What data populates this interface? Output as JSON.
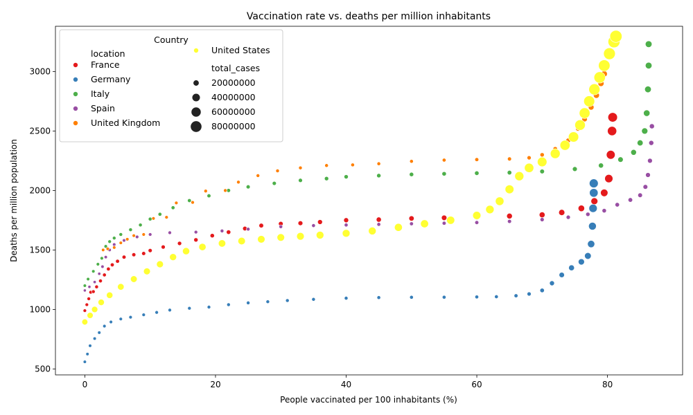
{
  "chart_data": {
    "type": "scatter",
    "title": "Vaccination rate vs. deaths per million inhabitants",
    "xlabel": "People vaccinated per 100 inhabitants (%)",
    "ylabel": "Deaths per million population",
    "xlim": [
      -4.5,
      91.5
    ],
    "ylim": [
      450,
      3380
    ],
    "x_ticks": [
      0,
      20,
      40,
      60,
      80
    ],
    "y_ticks": [
      500,
      1000,
      1500,
      2000,
      2500,
      3000
    ],
    "grid": false,
    "legend": {
      "placement": "top-left",
      "title": "Country",
      "hue_heading": "location",
      "size_heading": "total_cases",
      "size_entries": [
        20000000,
        40000000,
        60000000,
        80000000
      ]
    },
    "series": [
      {
        "name": "France",
        "color": "#e41a1c",
        "points": [
          [
            0,
            990
          ],
          [
            0.3,
            1040
          ],
          [
            0.6,
            1090
          ],
          [
            0.9,
            1145
          ],
          [
            1.3,
            1150
          ],
          [
            1.8,
            1190
          ],
          [
            2.4,
            1240
          ],
          [
            3.0,
            1290
          ],
          [
            3.6,
            1340
          ],
          [
            4.2,
            1375
          ],
          [
            5.0,
            1405
          ],
          [
            6.0,
            1440
          ],
          [
            7.5,
            1460
          ],
          [
            9.0,
            1470
          ],
          [
            10.0,
            1495
          ],
          [
            12.0,
            1525
          ],
          [
            14.5,
            1555
          ],
          [
            17.0,
            1585
          ],
          [
            19.5,
            1620
          ],
          [
            22.0,
            1650
          ],
          [
            24.5,
            1680
          ],
          [
            27.0,
            1705
          ],
          [
            30.0,
            1720
          ],
          [
            33.0,
            1725
          ],
          [
            36.0,
            1735
          ],
          [
            40.0,
            1750
          ],
          [
            45.0,
            1755
          ],
          [
            50.0,
            1765
          ],
          [
            55.0,
            1770
          ],
          [
            60.0,
            1775
          ],
          [
            65.0,
            1785
          ],
          [
            70.0,
            1795
          ],
          [
            73.0,
            1815
          ],
          [
            76.0,
            1850
          ],
          [
            78.0,
            1910
          ],
          [
            79.5,
            1980
          ],
          [
            80.2,
            2100
          ],
          [
            80.5,
            2300
          ],
          [
            80.7,
            2500
          ],
          [
            80.8,
            2615
          ]
        ],
        "cases": [
          5000000,
          5200000,
          5400000,
          5600000,
          5800000,
          6000000,
          6200000,
          6400000,
          6600000,
          6800000,
          7000000,
          7200000,
          7400000,
          7600000,
          7800000,
          8000000,
          8500000,
          9000000,
          9500000,
          10000000,
          10500000,
          11000000,
          11500000,
          12000000,
          12500000,
          13000000,
          14000000,
          15000000,
          16000000,
          17000000,
          18000000,
          19000000,
          21000000,
          24000000,
          28000000,
          33000000,
          40000000,
          47000000,
          52000000,
          55000000
        ]
      },
      {
        "name": "Germany",
        "color": "#377eb8",
        "points": [
          [
            0,
            560
          ],
          [
            0.4,
            625
          ],
          [
            0.8,
            695
          ],
          [
            1.5,
            755
          ],
          [
            2.2,
            805
          ],
          [
            3.0,
            860
          ],
          [
            4.0,
            895
          ],
          [
            5.5,
            920
          ],
          [
            7.0,
            935
          ],
          [
            9.0,
            955
          ],
          [
            11.0,
            975
          ],
          [
            13.0,
            995
          ],
          [
            16.0,
            1010
          ],
          [
            19.0,
            1020
          ],
          [
            22.0,
            1040
          ],
          [
            25.0,
            1055
          ],
          [
            28.0,
            1065
          ],
          [
            31.0,
            1075
          ],
          [
            35.0,
            1085
          ],
          [
            40.0,
            1095
          ],
          [
            45.0,
            1100
          ],
          [
            50.0,
            1102
          ],
          [
            55.0,
            1103
          ],
          [
            60.0,
            1105
          ],
          [
            63.0,
            1107
          ],
          [
            66.0,
            1115
          ],
          [
            68.0,
            1130
          ],
          [
            70.0,
            1160
          ],
          [
            71.5,
            1220
          ],
          [
            73.0,
            1290
          ],
          [
            74.5,
            1350
          ],
          [
            76.0,
            1400
          ],
          [
            77.0,
            1450
          ],
          [
            77.5,
            1550
          ],
          [
            77.7,
            1700
          ],
          [
            77.8,
            1850
          ],
          [
            77.9,
            1980
          ],
          [
            77.9,
            2060
          ]
        ],
        "cases": [
          4000000,
          4100000,
          4200000,
          4300000,
          4400000,
          4500000,
          4600000,
          4700000,
          4800000,
          4900000,
          5000000,
          5100000,
          5200000,
          5300000,
          5400000,
          5500000,
          5600000,
          5700000,
          5800000,
          5900000,
          6000000,
          6100000,
          6200000,
          6300000,
          6500000,
          7000000,
          8000000,
          10000000,
          13000000,
          16000000,
          19000000,
          22000000,
          26000000,
          31000000,
          36000000,
          41000000,
          45000000,
          48000000
        ]
      },
      {
        "name": "Italy",
        "color": "#4daf4a",
        "points": [
          [
            0,
            1200
          ],
          [
            0.5,
            1255
          ],
          [
            1.3,
            1320
          ],
          [
            2.0,
            1380
          ],
          [
            2.6,
            1430
          ],
          [
            3.2,
            1530
          ],
          [
            3.8,
            1570
          ],
          [
            4.5,
            1600
          ],
          [
            5.5,
            1630
          ],
          [
            7.0,
            1670
          ],
          [
            8.5,
            1710
          ],
          [
            10.0,
            1760
          ],
          [
            11.5,
            1800
          ],
          [
            13.5,
            1855
          ],
          [
            16.0,
            1915
          ],
          [
            19.0,
            1955
          ],
          [
            22.0,
            2000
          ],
          [
            25.0,
            2030
          ],
          [
            29.0,
            2060
          ],
          [
            33.0,
            2085
          ],
          [
            37.0,
            2100
          ],
          [
            40.0,
            2115
          ],
          [
            45.0,
            2125
          ],
          [
            50.0,
            2135
          ],
          [
            55.0,
            2140
          ],
          [
            60.0,
            2145
          ],
          [
            65.0,
            2150
          ],
          [
            70.0,
            2160
          ],
          [
            75.0,
            2180
          ],
          [
            79.0,
            2210
          ],
          [
            82.0,
            2260
          ],
          [
            84.0,
            2320
          ],
          [
            85.0,
            2400
          ],
          [
            85.7,
            2500
          ],
          [
            86.0,
            2650
          ],
          [
            86.2,
            2850
          ],
          [
            86.3,
            3050
          ],
          [
            86.3,
            3230
          ]
        ],
        "cases": [
          4000000,
          4200000,
          4400000,
          4600000,
          4800000,
          5000000,
          5200000,
          5400000,
          5600000,
          5800000,
          6000000,
          6200000,
          6400000,
          6600000,
          6800000,
          7000000,
          7300000,
          7600000,
          7900000,
          8200000,
          8500000,
          8800000,
          9100000,
          9400000,
          9700000,
          10000000,
          10500000,
          11000000,
          12000000,
          14000000,
          16000000,
          18000000,
          20000000,
          22000000,
          24000000,
          25000000,
          25500000,
          26000000
        ]
      },
      {
        "name": "Spain",
        "color": "#984ea3",
        "points": [
          [
            0,
            1160
          ],
          [
            0.7,
            1190
          ],
          [
            1.5,
            1230
          ],
          [
            2.2,
            1300
          ],
          [
            2.7,
            1360
          ],
          [
            3.2,
            1440
          ],
          [
            3.8,
            1500
          ],
          [
            4.5,
            1545
          ],
          [
            6.0,
            1580
          ],
          [
            8.0,
            1610
          ],
          [
            10.0,
            1630
          ],
          [
            13.0,
            1645
          ],
          [
            17.0,
            1650
          ],
          [
            21.0,
            1660
          ],
          [
            25.0,
            1675
          ],
          [
            30.0,
            1695
          ],
          [
            35.0,
            1705
          ],
          [
            40.0,
            1710
          ],
          [
            45.0,
            1715
          ],
          [
            50.0,
            1720
          ],
          [
            55.0,
            1725
          ],
          [
            60.0,
            1730
          ],
          [
            65.0,
            1740
          ],
          [
            70.0,
            1755
          ],
          [
            74.0,
            1775
          ],
          [
            77.0,
            1800
          ],
          [
            79.5,
            1830
          ],
          [
            81.5,
            1880
          ],
          [
            83.5,
            1920
          ],
          [
            85.0,
            1960
          ],
          [
            85.8,
            2030
          ],
          [
            86.2,
            2130
          ],
          [
            86.5,
            2250
          ],
          [
            86.7,
            2400
          ],
          [
            86.8,
            2540
          ]
        ],
        "cases": [
          3000000,
          3200000,
          3400000,
          3600000,
          3800000,
          4000000,
          4200000,
          4400000,
          4600000,
          4800000,
          5000000,
          5200000,
          5400000,
          5600000,
          5800000,
          6000000,
          6200000,
          6400000,
          6600000,
          6800000,
          7000000,
          7200000,
          7500000,
          8000000,
          8500000,
          9000000,
          9500000,
          10000000,
          10500000,
          11000000,
          11500000,
          12000000,
          12500000,
          13000000,
          13500000
        ]
      },
      {
        "name": "United Kingdom",
        "color": "#ff7f00",
        "points": [
          [
            2.8,
            1500
          ],
          [
            3.5,
            1510
          ],
          [
            4.5,
            1520
          ],
          [
            5.5,
            1560
          ],
          [
            6.5,
            1590
          ],
          [
            7.5,
            1620
          ],
          [
            9.0,
            1630
          ],
          [
            10.5,
            1765
          ],
          [
            12.5,
            1775
          ],
          [
            14.0,
            1895
          ],
          [
            16.5,
            1900
          ],
          [
            18.5,
            1995
          ],
          [
            21.5,
            2000
          ],
          [
            23.5,
            2070
          ],
          [
            26.5,
            2125
          ],
          [
            29.5,
            2165
          ],
          [
            33.0,
            2190
          ],
          [
            37.0,
            2210
          ],
          [
            41.0,
            2215
          ],
          [
            45.0,
            2225
          ],
          [
            50.0,
            2245
          ],
          [
            55.0,
            2255
          ],
          [
            60.0,
            2260
          ],
          [
            65.0,
            2265
          ],
          [
            68.0,
            2275
          ],
          [
            70.0,
            2300
          ],
          [
            72.0,
            2350
          ],
          [
            74.0,
            2420
          ],
          [
            75.5,
            2520
          ],
          [
            76.5,
            2600
          ],
          [
            77.5,
            2700
          ],
          [
            78.3,
            2800
          ],
          [
            79.0,
            2900
          ],
          [
            79.5,
            2980
          ]
        ],
        "cases": [
          4000000,
          4100000,
          4200000,
          4300000,
          4400000,
          4500000,
          4600000,
          4700000,
          4800000,
          4900000,
          5000000,
          5100000,
          5200000,
          5300000,
          5400000,
          5500000,
          5600000,
          5700000,
          5800000,
          5900000,
          6000000,
          6500000,
          7000000,
          7500000,
          8000000,
          9000000,
          10000000,
          12000000,
          14000000,
          16000000,
          18000000,
          20000000,
          21000000,
          22000000
        ]
      },
      {
        "name": "United States",
        "color": "#ffff33",
        "points": [
          [
            0,
            895
          ],
          [
            0.8,
            950
          ],
          [
            1.5,
            1000
          ],
          [
            2.5,
            1060
          ],
          [
            3.8,
            1120
          ],
          [
            5.5,
            1190
          ],
          [
            7.5,
            1255
          ],
          [
            9.5,
            1320
          ],
          [
            11.5,
            1380
          ],
          [
            13.5,
            1440
          ],
          [
            15.5,
            1490
          ],
          [
            18.0,
            1525
          ],
          [
            21.0,
            1555
          ],
          [
            24.0,
            1575
          ],
          [
            27.0,
            1590
          ],
          [
            30.0,
            1605
          ],
          [
            33.0,
            1615
          ],
          [
            36.0,
            1625
          ],
          [
            40.0,
            1640
          ],
          [
            44.0,
            1660
          ],
          [
            48.0,
            1690
          ],
          [
            52.0,
            1720
          ],
          [
            56.0,
            1750
          ],
          [
            60.0,
            1790
          ],
          [
            62.0,
            1840
          ],
          [
            63.5,
            1910
          ],
          [
            65.0,
            2010
          ],
          [
            66.5,
            2120
          ],
          [
            68.0,
            2190
          ],
          [
            70.0,
            2240
          ],
          [
            72.0,
            2310
          ],
          [
            73.5,
            2380
          ],
          [
            74.8,
            2450
          ],
          [
            75.8,
            2550
          ],
          [
            76.5,
            2650
          ],
          [
            77.2,
            2750
          ],
          [
            78.0,
            2850
          ],
          [
            78.8,
            2950
          ],
          [
            79.5,
            3050
          ],
          [
            80.3,
            3150
          ],
          [
            81.0,
            3250
          ],
          [
            81.3,
            3295
          ]
        ],
        "cases": [
          20000000,
          21000000,
          22000000,
          23000000,
          24000000,
          25000000,
          26000000,
          27000000,
          28000000,
          29000000,
          30000000,
          31000000,
          32000000,
          33000000,
          33500000,
          34000000,
          34500000,
          35000000,
          35500000,
          36000000,
          37000000,
          38000000,
          39000000,
          40000000,
          42000000,
          44000000,
          47000000,
          50000000,
          53000000,
          56000000,
          59000000,
          62000000,
          65000000,
          68000000,
          71000000,
          74000000,
          77000000,
          80000000,
          83000000,
          86000000,
          89000000,
          92000000
        ]
      }
    ]
  }
}
